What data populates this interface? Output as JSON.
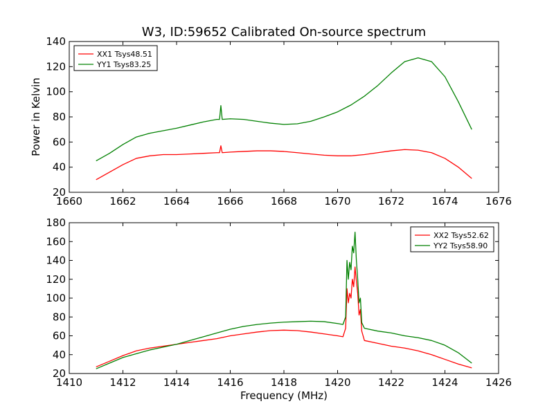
{
  "chart_data": [
    {
      "type": "line",
      "title": "W3, ID:59652 Calibrated On-source spectrum",
      "xlabel": "",
      "ylabel": "Power in Kelvin",
      "xlim": [
        1660,
        1676
      ],
      "ylim": [
        20,
        140
      ],
      "x_ticks": [
        "1660",
        "1662",
        "1664",
        "1666",
        "1668",
        "1670",
        "1672",
        "1674",
        "1676"
      ],
      "y_ticks": [
        "20",
        "40",
        "60",
        "80",
        "100",
        "120",
        "140"
      ],
      "legend_position": "top-left",
      "series": [
        {
          "name": "XX1 Tsys48.51",
          "color": "#ff0000",
          "x": [
            1661.0,
            1661.5,
            1662.0,
            1662.5,
            1663.0,
            1663.5,
            1664.0,
            1664.5,
            1665.0,
            1665.5,
            1665.6,
            1665.65,
            1665.7,
            1666.0,
            1666.5,
            1667.0,
            1667.5,
            1668.0,
            1668.5,
            1669.0,
            1669.5,
            1670.0,
            1670.5,
            1671.0,
            1671.5,
            1672.0,
            1672.5,
            1673.0,
            1673.5,
            1674.0,
            1674.5,
            1675.0
          ],
          "y": [
            30,
            36,
            42,
            47,
            49,
            50,
            50,
            50.5,
            51,
            51.5,
            51.5,
            57,
            51.5,
            52,
            52.5,
            53,
            53,
            52.5,
            51.5,
            50.5,
            49.5,
            49,
            49,
            50,
            51.5,
            53,
            54,
            53.5,
            51.5,
            47,
            40,
            31
          ]
        },
        {
          "name": "YY1 Tsys83.25",
          "color": "#008000",
          "x": [
            1661.0,
            1661.5,
            1662.0,
            1662.5,
            1663.0,
            1663.5,
            1664.0,
            1664.5,
            1665.0,
            1665.5,
            1665.6,
            1665.65,
            1665.7,
            1666.0,
            1666.5,
            1667.0,
            1667.5,
            1668.0,
            1668.5,
            1669.0,
            1669.5,
            1670.0,
            1670.5,
            1671.0,
            1671.5,
            1672.0,
            1672.5,
            1673.0,
            1673.5,
            1674.0,
            1674.5,
            1675.0
          ],
          "y": [
            45,
            51,
            58,
            64,
            67,
            69,
            71,
            73.5,
            76,
            78,
            78,
            89,
            78,
            78.5,
            78,
            76.5,
            75,
            74,
            74.5,
            76.5,
            80,
            84,
            89.5,
            96.5,
            105,
            115,
            124,
            127,
            124,
            112,
            92,
            70
          ]
        }
      ]
    },
    {
      "type": "line",
      "title": "",
      "xlabel": "Frequency (MHz)",
      "ylabel": "",
      "xlim": [
        1410,
        1426
      ],
      "ylim": [
        20,
        180
      ],
      "x_ticks": [
        "1410",
        "1412",
        "1414",
        "1416",
        "1418",
        "1420",
        "1422",
        "1424",
        "1426"
      ],
      "y_ticks": [
        "20",
        "40",
        "60",
        "80",
        "100",
        "120",
        "140",
        "160",
        "180"
      ],
      "legend_position": "top-right",
      "series": [
        {
          "name": "XX2 Tsys52.62",
          "color": "#ff0000",
          "x": [
            1411.0,
            1411.5,
            1412.0,
            1412.5,
            1413.0,
            1413.5,
            1414.0,
            1414.5,
            1415.0,
            1415.5,
            1416.0,
            1416.5,
            1417.0,
            1417.5,
            1418.0,
            1418.5,
            1419.0,
            1419.5,
            1420.0,
            1420.2,
            1420.3,
            1420.35,
            1420.4,
            1420.45,
            1420.5,
            1420.55,
            1420.6,
            1420.65,
            1420.7,
            1420.75,
            1420.8,
            1420.85,
            1420.9,
            1421.0,
            1421.5,
            1422.0,
            1422.5,
            1423.0,
            1423.5,
            1424.0,
            1424.5,
            1425.0
          ],
          "y": [
            27,
            33,
            39,
            44,
            47,
            49,
            51,
            53,
            55,
            57,
            60,
            62,
            64,
            65.5,
            66,
            65.5,
            64,
            62,
            60,
            59,
            68,
            110,
            95,
            105,
            100,
            120,
            112,
            133,
            118,
            105,
            82,
            88,
            65,
            55,
            52,
            49,
            47,
            44,
            40,
            35,
            30,
            26
          ]
        },
        {
          "name": "YY2 Tsys58.90",
          "color": "#008000",
          "x": [
            1411.0,
            1411.5,
            1412.0,
            1412.5,
            1413.0,
            1413.5,
            1414.0,
            1414.5,
            1415.0,
            1415.5,
            1416.0,
            1416.5,
            1417.0,
            1417.5,
            1418.0,
            1418.5,
            1419.0,
            1419.5,
            1420.0,
            1420.2,
            1420.3,
            1420.35,
            1420.4,
            1420.45,
            1420.5,
            1420.55,
            1420.6,
            1420.65,
            1420.7,
            1420.75,
            1420.8,
            1420.85,
            1420.9,
            1421.0,
            1421.5,
            1422.0,
            1422.5,
            1423.0,
            1423.5,
            1424.0,
            1424.5,
            1425.0
          ],
          "y": [
            25,
            31,
            37,
            41,
            45,
            48,
            51,
            55,
            59,
            63,
            67,
            70,
            72,
            73.5,
            74.5,
            75,
            75.5,
            75,
            73,
            72,
            80,
            140,
            120,
            138,
            130,
            155,
            148,
            170,
            140,
            120,
            95,
            100,
            74,
            68,
            65,
            63,
            60,
            58,
            55,
            50,
            42,
            31
          ]
        }
      ]
    }
  ]
}
